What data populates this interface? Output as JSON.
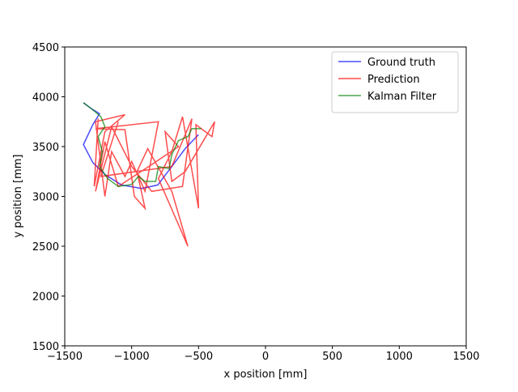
{
  "chart_data": {
    "type": "line",
    "xlabel": "x position [mm]",
    "ylabel": "y position [mm]",
    "xlim": [
      -1500,
      1500
    ],
    "xticks": [
      {
        "value": -1500,
        "label": "−1500"
      },
      {
        "value": -1000,
        "label": "−1000"
      },
      {
        "value": -500,
        "label": "−500"
      },
      0,
      500,
      1000,
      1500
    ],
    "ylim": [
      1500,
      4500
    ],
    "yticks": [
      1500,
      2000,
      2500,
      3000,
      3500,
      4000,
      4500
    ],
    "legend": "upper right",
    "series": [
      {
        "name": "Ground truth",
        "color": "#0000ff",
        "x": [
          -1360,
          -1300,
          -1240,
          -1290,
          -1360,
          -1290,
          -1200,
          -1075,
          -925,
          -805,
          -700,
          -600,
          -500
        ],
        "y": [
          3940,
          3880,
          3830,
          3720,
          3520,
          3340,
          3220,
          3115,
          3080,
          3115,
          3300,
          3480,
          3620
        ]
      },
      {
        "name": "Prediction",
        "color": "#ff0000",
        "x": [
          -1250,
          -1280,
          -1200,
          -1050,
          -1270,
          -1200,
          -1150,
          -1050,
          -1000,
          -900,
          -800,
          -1270,
          -1050,
          -980,
          -900,
          -960,
          -880,
          -700,
          -580,
          -800,
          -700,
          -620,
          -500,
          -520,
          -400,
          -380,
          -600,
          -700,
          -750,
          -650,
          -850,
          -1100,
          -1200,
          -1270,
          -1150,
          -1000,
          -850,
          -620,
          -550,
          -700,
          -1230,
          -1100
        ],
        "y": [
          3780,
          3100,
          3650,
          3820,
          3750,
          3000,
          3450,
          3200,
          3350,
          3050,
          3750,
          3680,
          3670,
          3000,
          2880,
          3250,
          3480,
          3050,
          2500,
          3180,
          3450,
          3800,
          2880,
          3720,
          3600,
          3750,
          3250,
          3150,
          3650,
          3500,
          3320,
          3100,
          3550,
          3050,
          3700,
          3300,
          3050,
          3100,
          3780,
          3300,
          3200,
          3750
        ]
      },
      {
        "name": "Kalman Filter",
        "color": "#008000",
        "x": [
          -1360,
          -1300,
          -1230,
          -1200,
          -1250,
          -1220,
          -1240,
          -1180,
          -1100,
          -1000,
          -950,
          -900,
          -820,
          -800,
          -720,
          -700,
          -650,
          -580,
          -550,
          -480
        ],
        "y": [
          3940,
          3880,
          3800,
          3700,
          3600,
          3450,
          3300,
          3180,
          3100,
          3120,
          3200,
          3150,
          3150,
          3300,
          3280,
          3420,
          3560,
          3600,
          3680,
          3680
        ]
      }
    ]
  }
}
